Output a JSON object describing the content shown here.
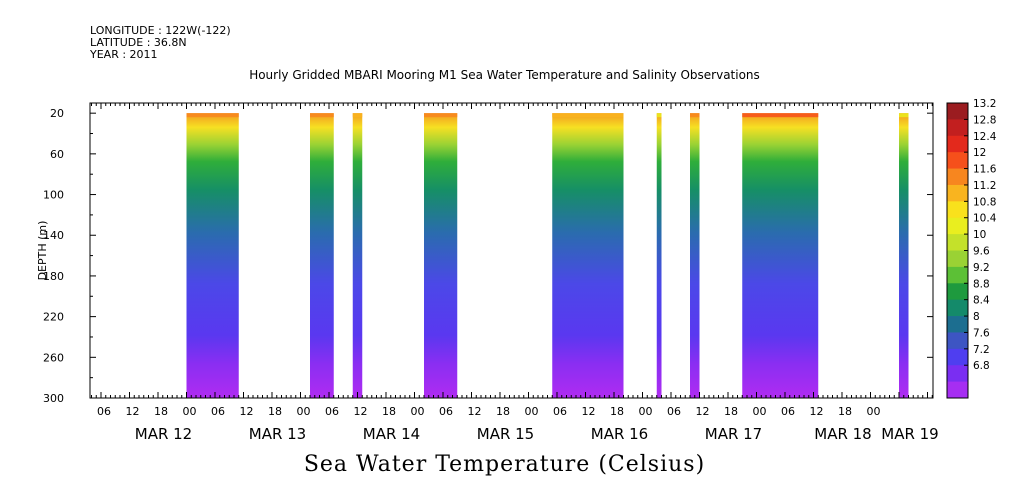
{
  "header": {
    "longitude": "LONGITUDE : 122W(-122)",
    "latitude": "LATITUDE : 36.8N",
    "year": "YEAR : 2011"
  },
  "chart_data": {
    "type": "heatmap",
    "title": "Hourly Gridded MBARI Mooring M1 Sea Water Temperature and Salinity Observations",
    "caption": "Sea Water Temperature (Celsius)",
    "ylabel": "DEPTH (m)",
    "y_reversed": true,
    "ylim": [
      300,
      10
    ],
    "y_ticks": [
      20,
      60,
      100,
      140,
      180,
      220,
      260,
      300
    ],
    "xlim_hours": [
      0,
      168
    ],
    "x_hour_ticks": [
      "06",
      "12",
      "18",
      "00",
      "06",
      "12",
      "18",
      "00",
      "06",
      "12",
      "18",
      "00",
      "06",
      "12",
      "18",
      "00",
      "06",
      "12",
      "18",
      "00",
      "06",
      "12",
      "18",
      "00",
      "06",
      "12",
      "18",
      "00"
    ],
    "x_day_labels": [
      "MAR 12",
      "MAR 13",
      "MAR 14",
      "MAR 15",
      "MAR 16",
      "MAR 17",
      "MAR 18",
      "MAR 19"
    ],
    "colorbar": {
      "ticks": [
        13.2,
        12.8,
        12.4,
        12,
        11.6,
        11.2,
        10.8,
        10.4,
        10,
        9.6,
        9.2,
        8.8,
        8.4,
        8,
        7.6,
        7.2,
        6.8
      ],
      "colors": [
        "#9b1c20",
        "#c21f1f",
        "#e3291c",
        "#f6501b",
        "#f7861f",
        "#f9b41f",
        "#f9e11c",
        "#e9ee1f",
        "#c4e12a",
        "#9ad234",
        "#5cc036",
        "#1e9a3e",
        "#148a6a",
        "#1c6e90",
        "#3d55c3",
        "#4f3ef0",
        "#7a2ef2",
        "#a62ef2"
      ]
    },
    "data_segments": [
      {
        "start_hour": 18,
        "end_hour": 29,
        "surface_temp": 11.6
      },
      {
        "start_hour": 44,
        "end_hour": 49,
        "surface_temp": 11.6
      },
      {
        "start_hour": 53,
        "end_hour": 55,
        "surface_temp": 11.2
      },
      {
        "start_hour": 68,
        "end_hour": 75,
        "surface_temp": 11.6
      },
      {
        "start_hour": 95,
        "end_hour": 110,
        "surface_temp": 11.2
      },
      {
        "start_hour": 117,
        "end_hour": 118,
        "surface_temp": 10.4
      },
      {
        "start_hour": 124,
        "end_hour": 126,
        "surface_temp": 11.6
      },
      {
        "start_hour": 135,
        "end_hour": 151,
        "surface_temp": 12.0
      },
      {
        "start_hour": 168,
        "end_hour": 170,
        "surface_temp": 10.4
      }
    ]
  }
}
